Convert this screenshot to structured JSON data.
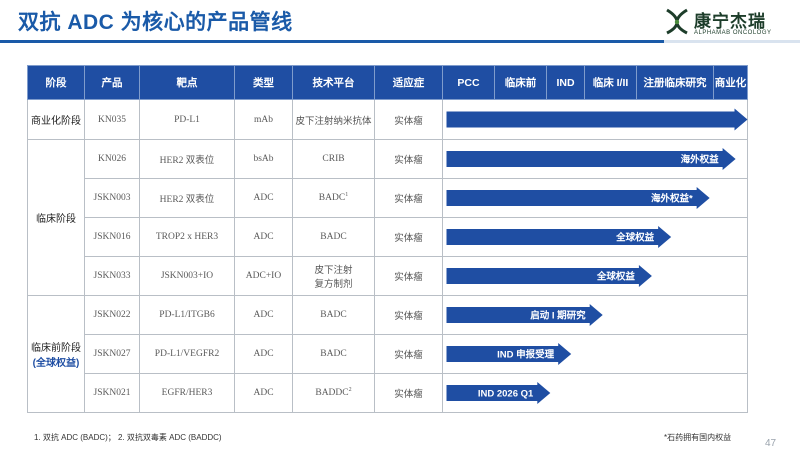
{
  "title": "双抗 ADC 为核心的产品管线",
  "logo": {
    "cn": "康宁杰瑞",
    "en": "ALPHAMAB ONCOLOGY",
    "color": "#1d3d2a"
  },
  "colors": {
    "primary": "#1f4ea3",
    "header_bg": "#1f4ea3"
  },
  "headers": {
    "stage": "阶段",
    "product": "产品",
    "target": "靶点",
    "type": "类型",
    "platform": "技术平台",
    "indication": "适应症",
    "phases": [
      "PCC",
      "临床前",
      "IND",
      "临床 I/II",
      "注册临床研究",
      "商业化"
    ]
  },
  "stages": {
    "commercial": "商业化阶段",
    "clinical": "临床阶段",
    "preclinical": "临床前阶段",
    "preclinical_note": "(全球权益)"
  },
  "rows": [
    {
      "product": "KN035",
      "target": "PD-L1",
      "type": "mAb",
      "platform": "皮下注射纳米抗体",
      "platform_sup": "",
      "indication": "实体瘤",
      "progress_label": "",
      "progress": 6.0
    },
    {
      "product": "KN026",
      "target": "HER2 双表位",
      "type": "bsAb",
      "platform": "CRIB",
      "platform_sup": "",
      "indication": "实体瘤",
      "progress_label": "海外权益",
      "progress": 5.65
    },
    {
      "product": "JSKN003",
      "target": "HER2 双表位",
      "type": "ADC",
      "platform": "BADC",
      "platform_sup": "1",
      "indication": "实体瘤",
      "progress_label": "海外权益*",
      "progress": 4.95
    },
    {
      "product": "JSKN016",
      "target": "TROP2 x HER3",
      "type": "ADC",
      "platform": "BADC",
      "platform_sup": "",
      "indication": "实体瘤",
      "progress_label": "全球权益",
      "progress": 4.45
    },
    {
      "product": "JSKN033",
      "target": "JSKN003+IO",
      "type": "ADC+IO",
      "platform": "皮下注射",
      "platform2": "复方制剂",
      "platform_sup": "",
      "indication": "实体瘤",
      "progress_label": "全球权益",
      "progress": 4.2
    },
    {
      "product": "JSKN022",
      "target": "PD-L1/ITGB6",
      "type": "ADC",
      "platform": "BADC",
      "platform_sup": "",
      "indication": "实体瘤",
      "progress_label": "启动 I 期研究",
      "progress": 3.35
    },
    {
      "product": "JSKN027",
      "target": "PD-L1/VEGFR2",
      "type": "ADC",
      "platform": "BADC",
      "platform_sup": "",
      "indication": "实体瘤",
      "progress_label": "IND 申报受理",
      "progress": 2.65
    },
    {
      "product": "JSKN021",
      "target": "EGFR/HER3",
      "type": "ADC",
      "platform": "BADDC",
      "platform_sup": "2",
      "indication": "实体瘤",
      "progress_label": "IND 2026 Q1",
      "progress": 2.1
    }
  ],
  "footnote": "1. 双抗 ADC (BADC)；  2. 双抗双毒素 ADC (BADDC)",
  "note_right": "*石药拥有国内权益",
  "page_number": "47"
}
